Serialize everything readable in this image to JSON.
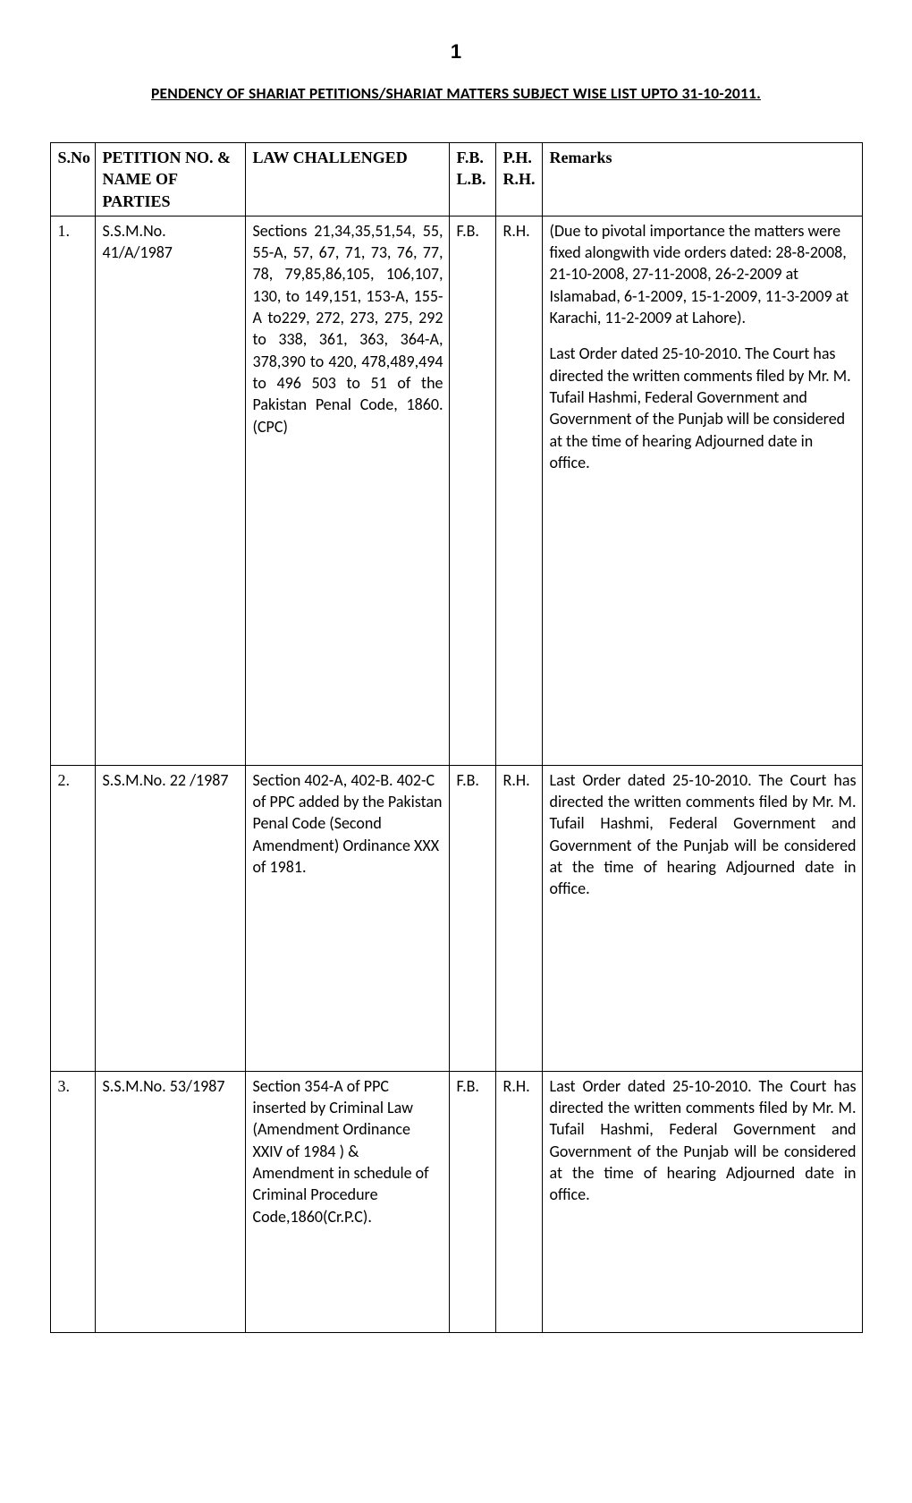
{
  "page_number": "1",
  "title": "PENDENCY OF SHARIAT PETITIONS/SHARIAT MATTERS SUBJECT WISE LIST UPTO 31-10-2011.",
  "columns": {
    "sno": "S.No",
    "petition": "PETITION NO. & NAME OF PARTIES",
    "law": "LAW CHALLENGED",
    "fb_lb": "F.B. L.B.",
    "ph_rh": "P.H. R.H.",
    "remarks": "Remarks"
  },
  "rows": [
    {
      "sno": "1.",
      "petition": "S.S.M.No. 41/A/1987",
      "law": "Sections 21,34,35,51,54, 55, 55-A, 57, 67, 71, 73, 76, 77, 78, 79,85,86,105, 106,107, 130, to 149,151, 153-A, 155-A to229, 272, 273, 275, 292 to 338, 361, 363, 364-A, 378,390 to 420, 478,489,494 to 496 503 to 51 of the Pakistan Penal Code, 1860. (CPC)",
      "fb": "F.B.",
      "ph": "R.H.",
      "remarks1": "(Due to pivotal importance the matters were fixed alongwith vide orders dated: 28-8-2008, 21-10-2008, 27-11-2008, 26-2-2009 at Islamabad, 6-1-2009, 15-1-2009, 11-3-2009 at Karachi, 11-2-2009 at Lahore).",
      "remarks2": "Last Order dated 25-10-2010. The Court has directed the written comments filed by Mr. M. Tufail Hashmi, Federal Government and Government of the Punjab will be considered at the time of hearing Adjourned date in office."
    },
    {
      "sno": "2.",
      "petition": "S.S.M.No. 22 /1987",
      "law": "Section 402-A, 402-B. 402-C of PPC added by the Pakistan Penal Code (Second Amendment) Ordinance XXX of 1981.",
      "fb": "F.B.",
      "ph": "R.H.",
      "remarks": "Last Order dated 25-10-2010. The Court has directed the written comments filed by Mr. M. Tufail Hashmi, Federal Government and Government of the Punjab will be considered at the time of hearing Adjourned date in office."
    },
    {
      "sno": "3.",
      "petition": "S.S.M.No. 53/1987",
      "law": "Section 354-A of PPC inserted by Criminal Law (Amendment Ordinance XXIV of 1984 ) & Amendment in schedule of Criminal Procedure Code,1860(Cr.P.C).",
      "fb": "F.B.",
      "ph": "R.H.",
      "remarks": "Last Order dated 25-10-2010. The Court has directed the written comments filed by Mr. M. Tufail Hashmi, Federal Government and Government of the Punjab will be considered at the time of hearing Adjourned date in office."
    }
  ]
}
